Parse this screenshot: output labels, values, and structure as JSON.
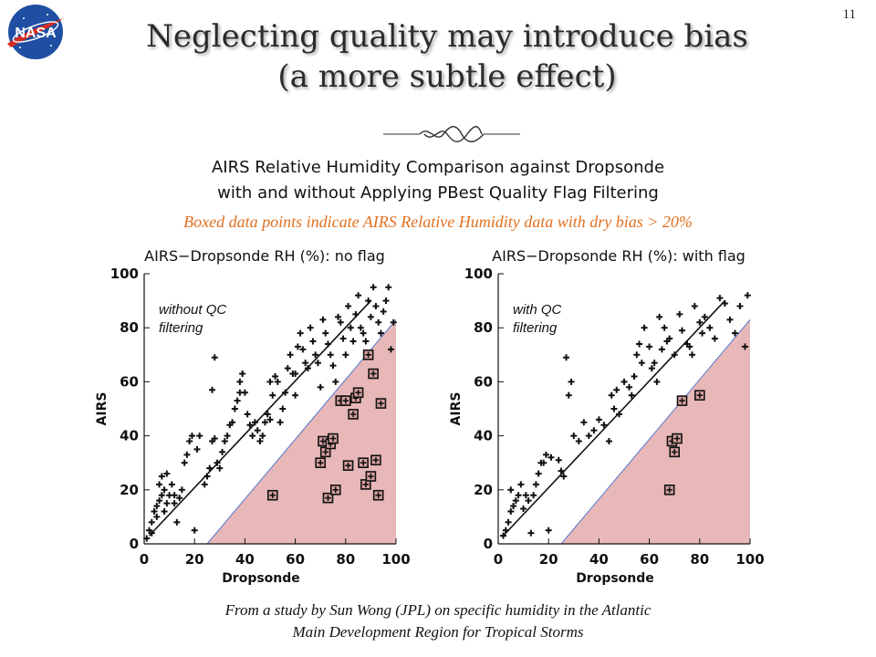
{
  "slide": {
    "number": "11",
    "title_line1": "Neglecting quality may introduce bias",
    "title_line2": "(a more subtle effect)",
    "subtitle_line1": "AIRS Relative Humidity Comparison against Dropsonde",
    "subtitle_line2": "with and without Applying PBest Quality Flag Filtering",
    "note": "Boxed data points indicate AIRS Relative Humidity data with dry bias > 20%",
    "footer_line1": "From a study by Sun Wong (JPL) on specific humidity in the Atlantic",
    "footer_line2": "Main Development Region for Tropical Storms",
    "logo_text": "NASA",
    "colors": {
      "note": "#e07020",
      "shade": "#e8b8b8",
      "shade_edge": "#5577cc",
      "logo_blue": "#1f4ea3",
      "logo_red": "#d62d20"
    }
  },
  "chart_data": [
    {
      "type": "scatter",
      "title": "AIRS−Dropsonde RH (%): no flag",
      "annotation": "without QC\nfiltering",
      "xlabel": "Dropsonde",
      "ylabel": "AIRS",
      "xlim": [
        0,
        100
      ],
      "ylim": [
        0,
        100
      ],
      "xticks": [
        0,
        20,
        40,
        60,
        80,
        100
      ],
      "yticks": [
        0,
        20,
        40,
        60,
        80,
        100
      ],
      "fit_line": {
        "x": [
          2,
          90
        ],
        "y": [
          3,
          90
        ]
      },
      "shaded_region": {
        "x": [
          25,
          100,
          100
        ],
        "y": [
          0,
          0,
          83
        ]
      },
      "points": [
        [
          1,
          2
        ],
        [
          2,
          5
        ],
        [
          3,
          4
        ],
        [
          3,
          8
        ],
        [
          4,
          12
        ],
        [
          5,
          10
        ],
        [
          5,
          14
        ],
        [
          6,
          16
        ],
        [
          6,
          22
        ],
        [
          7,
          25
        ],
        [
          7,
          18
        ],
        [
          8,
          12
        ],
        [
          8,
          20
        ],
        [
          9,
          15
        ],
        [
          9,
          26
        ],
        [
          10,
          18
        ],
        [
          11,
          22
        ],
        [
          12,
          18
        ],
        [
          12,
          15
        ],
        [
          13,
          8
        ],
        [
          14,
          17
        ],
        [
          15,
          20
        ],
        [
          16,
          30
        ],
        [
          17,
          33
        ],
        [
          18,
          38
        ],
        [
          19,
          40
        ],
        [
          20,
          5
        ],
        [
          21,
          35
        ],
        [
          22,
          40
        ],
        [
          24,
          22
        ],
        [
          25,
          25
        ],
        [
          26,
          28
        ],
        [
          27,
          38
        ],
        [
          28,
          39
        ],
        [
          29,
          30
        ],
        [
          30,
          28
        ],
        [
          27,
          57
        ],
        [
          28,
          69
        ],
        [
          31,
          34
        ],
        [
          32,
          38
        ],
        [
          33,
          40
        ],
        [
          34,
          44
        ],
        [
          35,
          45
        ],
        [
          36,
          50
        ],
        [
          37,
          53
        ],
        [
          38,
          56
        ],
        [
          38,
          60
        ],
        [
          39,
          63
        ],
        [
          40,
          56
        ],
        [
          41,
          48
        ],
        [
          42,
          44
        ],
        [
          43,
          40
        ],
        [
          44,
          45
        ],
        [
          45,
          42
        ],
        [
          46,
          38
        ],
        [
          47,
          40
        ],
        [
          48,
          45
        ],
        [
          49,
          48
        ],
        [
          50,
          46
        ],
        [
          50,
          60
        ],
        [
          51,
          55
        ],
        [
          52,
          62
        ],
        [
          53,
          60
        ],
        [
          54,
          45
        ],
        [
          55,
          50
        ],
        [
          56,
          56
        ],
        [
          57,
          65
        ],
        [
          58,
          70
        ],
        [
          59,
          63
        ],
        [
          60,
          63
        ],
        [
          60,
          55
        ],
        [
          61,
          73
        ],
        [
          62,
          78
        ],
        [
          63,
          72
        ],
        [
          64,
          67
        ],
        [
          65,
          65
        ],
        [
          66,
          80
        ],
        [
          67,
          75
        ],
        [
          68,
          70
        ],
        [
          69,
          67
        ],
        [
          70,
          58
        ],
        [
          71,
          83
        ],
        [
          72,
          78
        ],
        [
          73,
          74
        ],
        [
          74,
          70
        ],
        [
          75,
          66
        ],
        [
          76,
          60
        ],
        [
          77,
          84
        ],
        [
          78,
          82
        ],
        [
          79,
          76
        ],
        [
          80,
          70
        ],
        [
          81,
          88
        ],
        [
          82,
          80
        ],
        [
          83,
          75
        ],
        [
          84,
          85
        ],
        [
          85,
          92
        ],
        [
          86,
          80
        ],
        [
          87,
          78
        ],
        [
          88,
          75
        ],
        [
          89,
          90
        ],
        [
          90,
          84
        ],
        [
          91,
          95
        ],
        [
          92,
          88
        ],
        [
          93,
          82
        ],
        [
          94,
          78
        ],
        [
          95,
          86
        ],
        [
          96,
          90
        ],
        [
          97,
          95
        ],
        [
          98,
          72
        ],
        [
          99,
          82
        ]
      ],
      "boxed_points": [
        [
          51,
          18
        ],
        [
          70,
          30
        ],
        [
          71,
          38
        ],
        [
          72,
          34
        ],
        [
          73,
          17
        ],
        [
          74,
          37
        ],
        [
          75,
          39
        ],
        [
          76,
          20
        ],
        [
          78,
          53
        ],
        [
          80,
          53
        ],
        [
          81,
          29
        ],
        [
          83,
          48
        ],
        [
          84,
          54
        ],
        [
          85,
          56
        ],
        [
          87,
          30
        ],
        [
          88,
          22
        ],
        [
          89,
          70
        ],
        [
          90,
          25
        ],
        [
          91,
          63
        ],
        [
          92,
          31
        ],
        [
          93,
          18
        ],
        [
          94,
          52
        ]
      ]
    },
    {
      "type": "scatter",
      "title": "AIRS−Dropsonde RH (%): with flag",
      "annotation": "with QC\nfiltering",
      "xlabel": "Dropsonde",
      "ylabel": "AIRS",
      "xlim": [
        0,
        100
      ],
      "ylim": [
        0,
        100
      ],
      "xticks": [
        0,
        20,
        40,
        60,
        80,
        100
      ],
      "yticks": [
        0,
        20,
        40,
        60,
        80,
        100
      ],
      "fit_line": {
        "x": [
          2,
          90
        ],
        "y": [
          3,
          90
        ]
      },
      "shaded_region": {
        "x": [
          25,
          100,
          100
        ],
        "y": [
          0,
          0,
          83
        ]
      },
      "points": [
        [
          2,
          3
        ],
        [
          3,
          5
        ],
        [
          4,
          8
        ],
        [
          5,
          12
        ],
        [
          5,
          20
        ],
        [
          6,
          14
        ],
        [
          7,
          16
        ],
        [
          8,
          18
        ],
        [
          9,
          22
        ],
        [
          10,
          13
        ],
        [
          11,
          18
        ],
        [
          12,
          16
        ],
        [
          13,
          4
        ],
        [
          14,
          18
        ],
        [
          15,
          22
        ],
        [
          16,
          26
        ],
        [
          17,
          30
        ],
        [
          18,
          30
        ],
        [
          19,
          33
        ],
        [
          20,
          5
        ],
        [
          21,
          32
        ],
        [
          24,
          31
        ],
        [
          25,
          27
        ],
        [
          26,
          25
        ],
        [
          27,
          69
        ],
        [
          28,
          55
        ],
        [
          29,
          60
        ],
        [
          30,
          40
        ],
        [
          32,
          38
        ],
        [
          34,
          45
        ],
        [
          36,
          40
        ],
        [
          38,
          42
        ],
        [
          40,
          46
        ],
        [
          42,
          44
        ],
        [
          44,
          38
        ],
        [
          45,
          55
        ],
        [
          46,
          50
        ],
        [
          47,
          57
        ],
        [
          48,
          48
        ],
        [
          50,
          60
        ],
        [
          52,
          58
        ],
        [
          53,
          55
        ],
        [
          54,
          62
        ],
        [
          55,
          70
        ],
        [
          56,
          74
        ],
        [
          57,
          67
        ],
        [
          58,
          80
        ],
        [
          60,
          73
        ],
        [
          61,
          65
        ],
        [
          62,
          67
        ],
        [
          63,
          60
        ],
        [
          64,
          84
        ],
        [
          65,
          72
        ],
        [
          66,
          80
        ],
        [
          67,
          75
        ],
        [
          68,
          76
        ],
        [
          70,
          70
        ],
        [
          72,
          85
        ],
        [
          73,
          79
        ],
        [
          75,
          74
        ],
        [
          76,
          73
        ],
        [
          77,
          70
        ],
        [
          78,
          88
        ],
        [
          80,
          82
        ],
        [
          81,
          78
        ],
        [
          82,
          84
        ],
        [
          84,
          80
        ],
        [
          86,
          76
        ],
        [
          88,
          91
        ],
        [
          90,
          89
        ],
        [
          92,
          83
        ],
        [
          94,
          78
        ],
        [
          96,
          88
        ],
        [
          98,
          73
        ],
        [
          99,
          92
        ]
      ],
      "boxed_points": [
        [
          68,
          20
        ],
        [
          69,
          38
        ],
        [
          70,
          34
        ],
        [
          71,
          39
        ],
        [
          73,
          53
        ],
        [
          80,
          55
        ]
      ]
    }
  ]
}
